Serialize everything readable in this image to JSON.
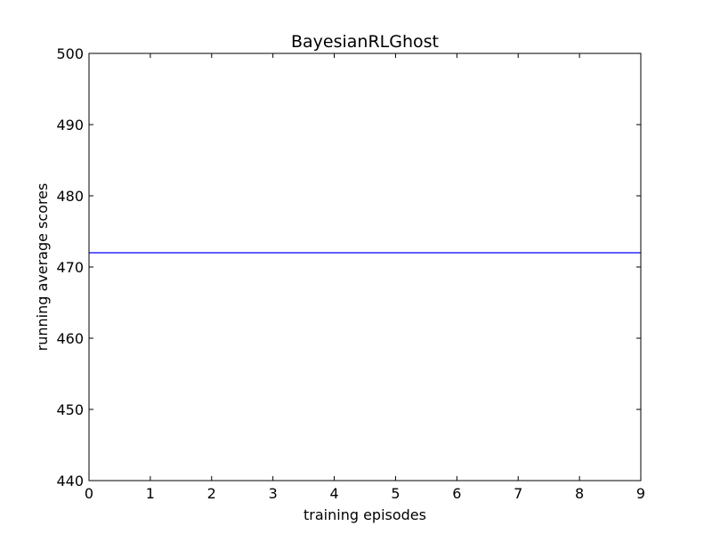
{
  "chart_data": {
    "type": "line",
    "title": "BayesianRLGhost",
    "xlabel": "training episodes",
    "ylabel": "running average scores",
    "xlim": [
      0,
      9
    ],
    "ylim": [
      440,
      500
    ],
    "xticks": [
      0,
      1,
      2,
      3,
      4,
      5,
      6,
      7,
      8,
      9
    ],
    "yticks": [
      440,
      450,
      460,
      470,
      480,
      490,
      500
    ],
    "grid": false,
    "series": [
      {
        "color": "#0000ff",
        "x": [
          0,
          1,
          2,
          3,
          4,
          5,
          6,
          7,
          8,
          9
        ],
        "y": [
          472,
          472,
          472,
          472,
          472,
          472,
          472,
          472,
          472,
          472
        ]
      }
    ]
  }
}
